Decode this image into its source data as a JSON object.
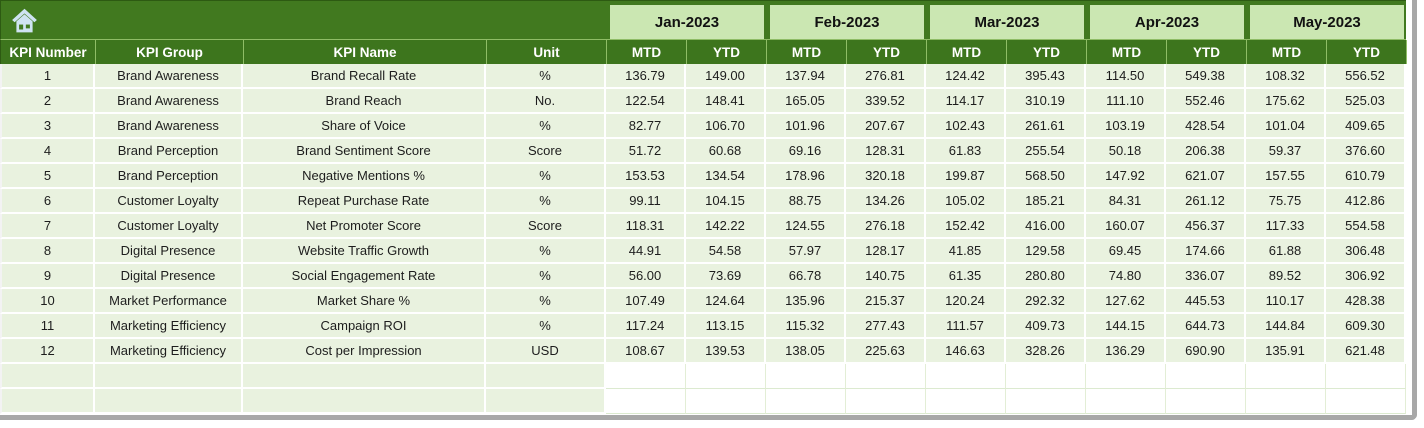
{
  "icons": {
    "home": "home-icon"
  },
  "colors": {
    "header_dark_green": "#3D751D",
    "banner_green": "#41791F",
    "month_light_green": "#CBE7B2",
    "row_light_green": "#E9F2DF",
    "grid_white": "#FFFFFF",
    "window_edge_gray": "#A8A8A8",
    "home_icon_blue": "#CFE3F2",
    "header_text": "#FFFFFF",
    "body_text": "#1D1D1D"
  },
  "table": {
    "column_headers": [
      "KPI Number",
      "KPI Group",
      "KPI Name",
      "Unit"
    ],
    "months": [
      "Jan-2023",
      "Feb-2023",
      "Mar-2023",
      "Apr-2023",
      "May-2023"
    ],
    "sub_headers": {
      "mtd": "MTD",
      "ytd": "YTD"
    },
    "rows": [
      {
        "kpi_number": "1",
        "kpi_group": "Brand Awareness",
        "kpi_name": "Brand Recall Rate",
        "unit": "%",
        "values": [
          "136.79",
          "149.00",
          "137.94",
          "276.81",
          "124.42",
          "395.43",
          "114.50",
          "549.38",
          "108.32",
          "556.52"
        ]
      },
      {
        "kpi_number": "2",
        "kpi_group": "Brand Awareness",
        "kpi_name": "Brand Reach",
        "unit": "No.",
        "values": [
          "122.54",
          "148.41",
          "165.05",
          "339.52",
          "114.17",
          "310.19",
          "111.10",
          "552.46",
          "175.62",
          "525.03"
        ]
      },
      {
        "kpi_number": "3",
        "kpi_group": "Brand Awareness",
        "kpi_name": "Share of Voice",
        "unit": "%",
        "values": [
          "82.77",
          "106.70",
          "101.96",
          "207.67",
          "102.43",
          "261.61",
          "103.19",
          "428.54",
          "101.04",
          "409.65"
        ]
      },
      {
        "kpi_number": "4",
        "kpi_group": "Brand Perception",
        "kpi_name": "Brand Sentiment Score",
        "unit": "Score",
        "values": [
          "51.72",
          "60.68",
          "69.16",
          "128.31",
          "61.83",
          "255.54",
          "50.18",
          "206.38",
          "59.37",
          "376.60"
        ]
      },
      {
        "kpi_number": "5",
        "kpi_group": "Brand Perception",
        "kpi_name": "Negative Mentions %",
        "unit": "%",
        "values": [
          "153.53",
          "134.54",
          "178.96",
          "320.18",
          "199.87",
          "568.50",
          "147.92",
          "621.07",
          "157.55",
          "610.79"
        ]
      },
      {
        "kpi_number": "6",
        "kpi_group": "Customer Loyalty",
        "kpi_name": "Repeat Purchase Rate",
        "unit": "%",
        "values": [
          "99.11",
          "104.15",
          "88.75",
          "134.26",
          "105.02",
          "185.21",
          "84.31",
          "261.12",
          "75.75",
          "412.86"
        ]
      },
      {
        "kpi_number": "7",
        "kpi_group": "Customer Loyalty",
        "kpi_name": "Net Promoter Score",
        "unit": "Score",
        "values": [
          "118.31",
          "142.22",
          "124.55",
          "276.18",
          "152.42",
          "416.00",
          "160.07",
          "456.37",
          "117.33",
          "554.58"
        ]
      },
      {
        "kpi_number": "8",
        "kpi_group": "Digital Presence",
        "kpi_name": "Website Traffic Growth",
        "unit": "%",
        "values": [
          "44.91",
          "54.58",
          "57.97",
          "128.17",
          "41.85",
          "129.58",
          "69.45",
          "174.66",
          "61.88",
          "306.48"
        ]
      },
      {
        "kpi_number": "9",
        "kpi_group": "Digital Presence",
        "kpi_name": "Social Engagement Rate",
        "unit": "%",
        "values": [
          "56.00",
          "73.69",
          "66.78",
          "140.75",
          "61.35",
          "280.80",
          "74.80",
          "336.07",
          "89.52",
          "306.92"
        ]
      },
      {
        "kpi_number": "10",
        "kpi_group": "Market Performance",
        "kpi_name": "Market Share %",
        "unit": "%",
        "values": [
          "107.49",
          "124.64",
          "135.96",
          "215.37",
          "120.24",
          "292.32",
          "127.62",
          "445.53",
          "110.17",
          "428.38"
        ]
      },
      {
        "kpi_number": "11",
        "kpi_group": "Marketing Efficiency",
        "kpi_name": "Campaign ROI",
        "unit": "%",
        "values": [
          "117.24",
          "113.15",
          "115.32",
          "277.43",
          "111.57",
          "409.73",
          "144.15",
          "644.73",
          "144.84",
          "609.30"
        ]
      },
      {
        "kpi_number": "12",
        "kpi_group": "Marketing Efficiency",
        "kpi_name": "Cost per Impression",
        "unit": "USD",
        "values": [
          "108.67",
          "139.53",
          "138.05",
          "225.63",
          "146.63",
          "328.26",
          "136.29",
          "690.90",
          "135.91",
          "621.48"
        ]
      }
    ],
    "empty_row_count": 2
  }
}
